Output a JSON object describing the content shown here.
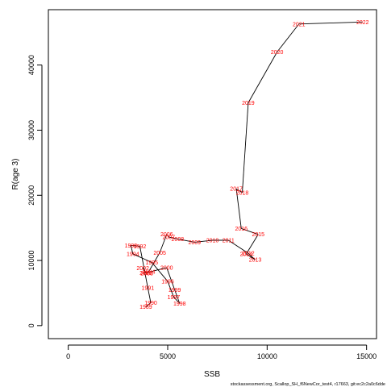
{
  "chart_data": {
    "type": "line",
    "xlabel": "SSB",
    "ylabel": "R(age 3)",
    "xlim": [
      -1000,
      15500
    ],
    "ylim": [
      -2000,
      48500
    ],
    "x_ticks": [
      0,
      5000,
      10000,
      15000
    ],
    "x_tick_labels": [
      "0",
      "5000",
      "10000",
      "15000"
    ],
    "y_ticks": [
      0,
      10000,
      20000,
      30000,
      40000
    ],
    "y_tick_labels": [
      "0",
      "10000",
      "20000",
      "30000",
      "40000"
    ],
    "grid": false,
    "line_color": "#000000",
    "label_color": "#ff0000",
    "points": [
      {
        "year": "1989",
        "ssb": 3900,
        "r": 2900
      },
      {
        "year": "1990",
        "ssb": 4150,
        "r": 3500
      },
      {
        "year": "1991",
        "ssb": 4000,
        "r": 5800
      },
      {
        "year": "1992",
        "ssb": 3600,
        "r": 12200
      },
      {
        "year": "1993",
        "ssb": 3150,
        "r": 12300
      },
      {
        "year": "1994",
        "ssb": 3250,
        "r": 11000
      },
      {
        "year": "1995",
        "ssb": 4200,
        "r": 9700
      },
      {
        "year": "1996",
        "ssb": 5000,
        "r": 6800
      },
      {
        "year": "1997",
        "ssb": 5300,
        "r": 4400
      },
      {
        "year": "1998",
        "ssb": 5600,
        "r": 3400
      },
      {
        "year": "1999",
        "ssb": 5350,
        "r": 5500
      },
      {
        "year": "2000",
        "ssb": 4950,
        "r": 8900
      },
      {
        "year": "2001",
        "ssb": 3900,
        "r": 8100
      },
      {
        "year": "2002",
        "ssb": 3750,
        "r": 8800
      },
      {
        "year": "2003",
        "ssb": 3950,
        "r": 8000
      },
      {
        "year": "2004",
        "ssb": 4050,
        "r": 8300
      },
      {
        "year": "2005",
        "ssb": 4600,
        "r": 11200
      },
      {
        "year": "2006",
        "ssb": 4950,
        "r": 14000
      },
      {
        "year": "2007",
        "ssb": 5050,
        "r": 13600
      },
      {
        "year": "2008",
        "ssb": 5500,
        "r": 13300
      },
      {
        "year": "2009",
        "ssb": 6350,
        "r": 12800
      },
      {
        "year": "2010",
        "ssb": 7250,
        "r": 13100
      },
      {
        "year": "2011",
        "ssb": 8050,
        "r": 13100
      },
      {
        "year": "2012",
        "ssb": 9050,
        "r": 11100
      },
      {
        "year": "2013",
        "ssb": 9400,
        "r": 10100
      },
      {
        "year": "2014",
        "ssb": 8950,
        "r": 11000
      },
      {
        "year": "2015",
        "ssb": 9550,
        "r": 14000
      },
      {
        "year": "2016",
        "ssb": 8700,
        "r": 14900
      },
      {
        "year": "2017",
        "ssb": 8450,
        "r": 21000
      },
      {
        "year": "2018",
        "ssb": 8750,
        "r": 20400
      },
      {
        "year": "2019",
        "ssb": 9050,
        "r": 34200
      },
      {
        "year": "2020",
        "ssb": 10500,
        "r": 42000
      },
      {
        "year": "2021",
        "ssb": 11600,
        "r": 46300
      },
      {
        "year": "2022",
        "ssb": 14800,
        "r": 46600
      }
    ]
  },
  "footer_text": "stockassessment.org, Scallop_SH_f6NewCor_test4, r17663, git:ec2c2a0c6dde"
}
